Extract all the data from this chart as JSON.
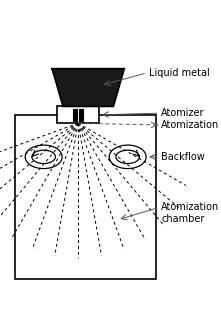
{
  "bg_color": "#ffffff",
  "line_color": "#000000",
  "gray_color": "#555555",
  "labels": {
    "liquid_metal": "Liquid metal",
    "atomizer": "Atomizer",
    "atomization": "Atomization",
    "backflow": "Backflow",
    "atomization_chamber": "Atomization\nchamber"
  },
  "font_size": 7
}
